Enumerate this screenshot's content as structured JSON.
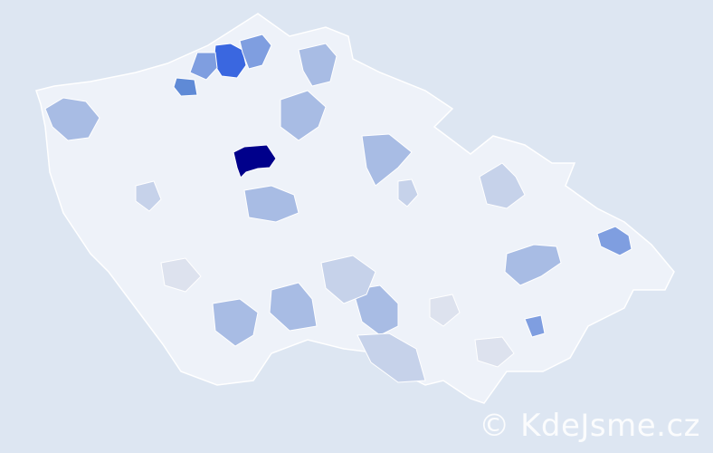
{
  "watermark": "© KdeJsme.cz",
  "colors": {
    "background": "#dde6f2",
    "country_base": "#eef2f9",
    "border": "#ffffff",
    "level_light": "#dde2ee",
    "level_mid_light": "#c6d2ea",
    "level_mid": "#a8bce4",
    "level_high": "#7f9ee0",
    "level_higher": "#5f8ad6",
    "level_strong": "#3a67e0",
    "level_max": "#00008b"
  },
  "regions": [
    {
      "color": "level_max"
    },
    {
      "color": "level_strong"
    },
    {
      "color": "level_higher"
    },
    {
      "color": "level_high"
    },
    {
      "color": "level_high"
    },
    {
      "color": "level_high"
    },
    {
      "color": "level_mid"
    },
    {
      "color": "level_mid"
    },
    {
      "color": "level_mid"
    },
    {
      "color": "level_mid"
    },
    {
      "color": "level_mid"
    },
    {
      "color": "level_mid"
    },
    {
      "color": "level_mid"
    },
    {
      "color": "level_mid"
    },
    {
      "color": "level_mid"
    },
    {
      "color": "level_mid_light"
    },
    {
      "color": "level_mid_light"
    },
    {
      "color": "level_mid_light"
    },
    {
      "color": "level_mid_light"
    },
    {
      "color": "level_mid_light"
    },
    {
      "color": "level_light"
    },
    {
      "color": "level_light"
    },
    {
      "color": "level_light"
    },
    {
      "color": "level_high"
    }
  ]
}
